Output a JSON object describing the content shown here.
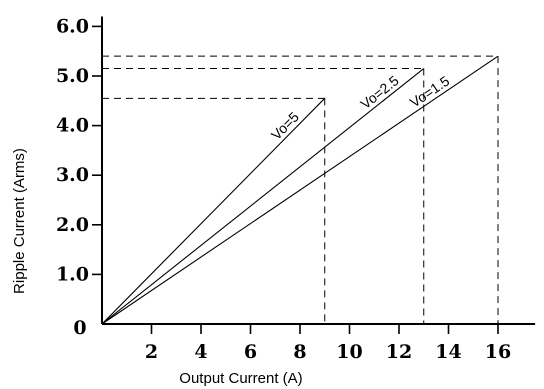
{
  "chart_data": {
    "type": "line",
    "xlabel": "Output Current (A)",
    "ylabel": "Ripple Current (Arms)",
    "xlim": [
      0,
      17.5
    ],
    "ylim": [
      0,
      6.2
    ],
    "origin_label": "0",
    "x_ticks": [
      "2",
      "4",
      "6",
      "8",
      "10",
      "12",
      "14",
      "16"
    ],
    "x_tick_values": [
      2,
      4,
      6,
      8,
      10,
      12,
      14,
      16
    ],
    "y_ticks": [
      "1.0",
      "2.0",
      "3.0",
      "4.0",
      "5.0",
      "6.0"
    ],
    "y_tick_values": [
      1,
      2,
      3,
      4,
      5,
      6
    ],
    "grid": false,
    "series": [
      {
        "name": "Vo=5",
        "x": [
          0,
          9
        ],
        "y": [
          0,
          4.55
        ]
      },
      {
        "name": "Vo=2.5",
        "x": [
          0,
          13
        ],
        "y": [
          0,
          5.15
        ]
      },
      {
        "name": "Vo=1.5",
        "x": [
          0,
          16
        ],
        "y": [
          0,
          5.4
        ]
      }
    ],
    "guides": [
      {
        "x": 9,
        "y": 4.55
      },
      {
        "x": 13,
        "y": 5.15
      },
      {
        "x": 16,
        "y": 5.4
      }
    ]
  }
}
